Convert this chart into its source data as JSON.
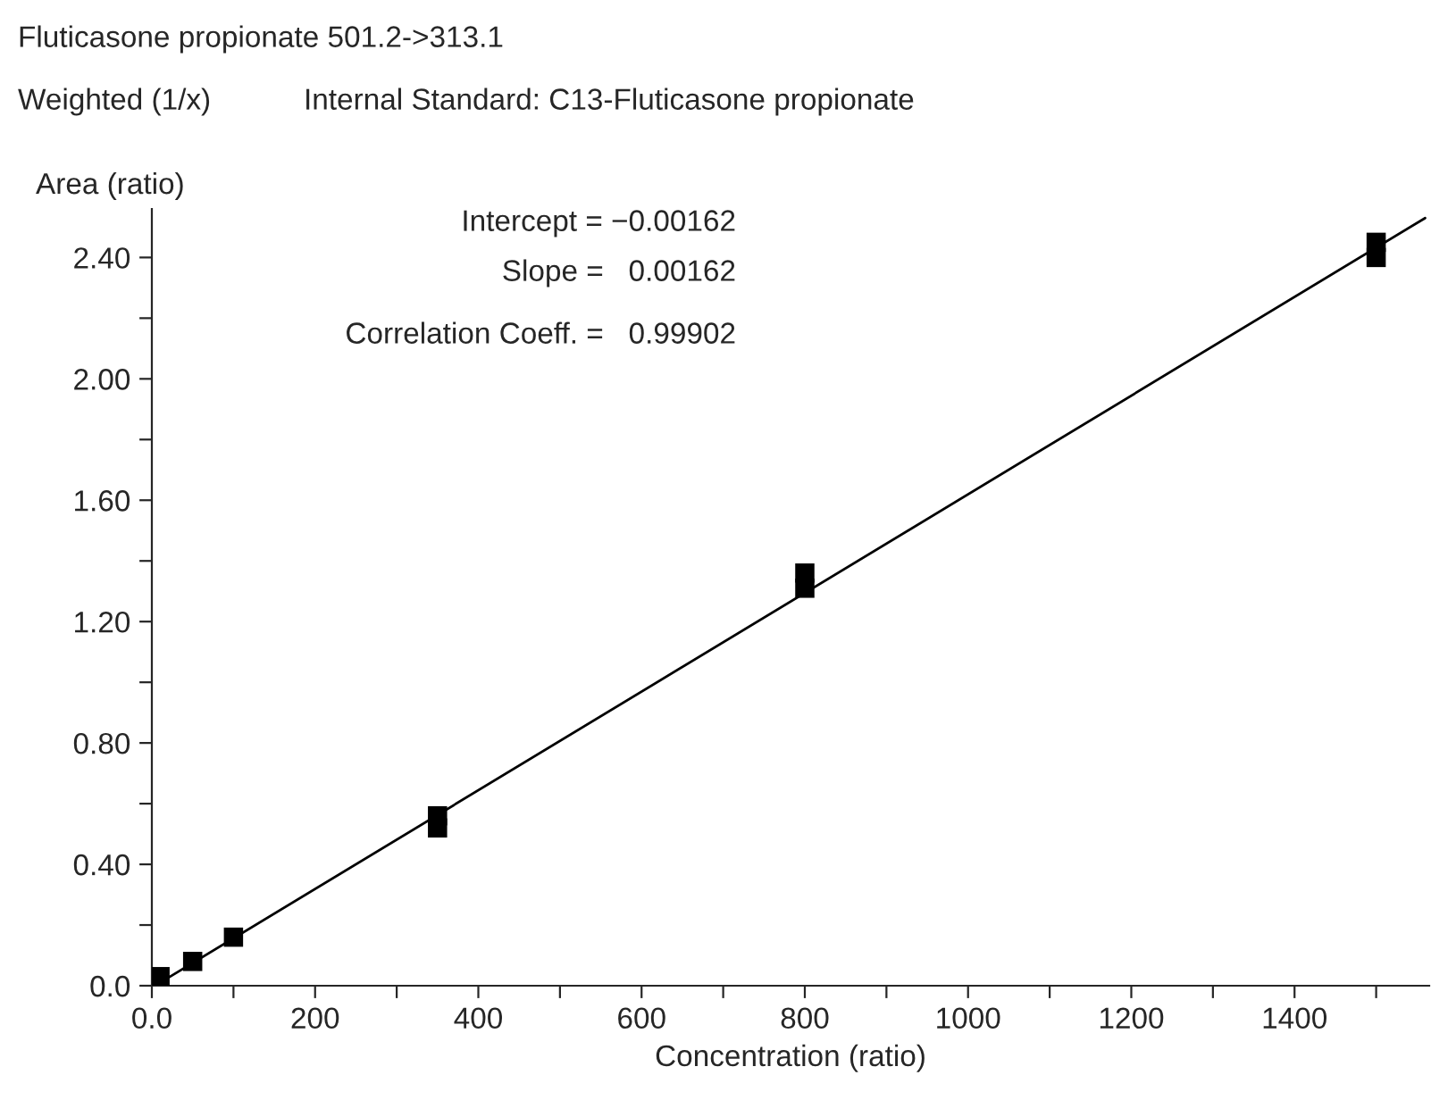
{
  "chart_data": {
    "type": "scatter",
    "title": "Fluticasone propionate 501.2->313.1",
    "subtitle": "Weighted (1/x)",
    "xlabel": "Concentration (ratio)",
    "ylabel": "Area (ratio)",
    "annotations": [
      "Internal Standard: C13-Fluticasone propionate",
      "Intercept = −0.00162",
      "Slope =   0.00162",
      "Correlation Coeff. =   0.99902"
    ],
    "legend": false,
    "grid": false,
    "series": [
      {
        "marker": "square",
        "color": "#000000",
        "x": [
          10,
          50,
          100,
          350,
          350,
          800,
          800,
          1500,
          1500
        ],
        "values": [
          0.03,
          0.08,
          0.16,
          0.52,
          0.56,
          1.31,
          1.36,
          2.4,
          2.45
        ]
      },
      {
        "type": "line",
        "color": "#000000",
        "x": [
          10,
          1560
        ],
        "values": [
          0.01,
          2.53
        ]
      }
    ],
    "xlim": [
      0,
      1565
    ],
    "ylim": [
      0,
      2.56
    ],
    "xticks": [
      {
        "value": 0,
        "label": "0.0"
      },
      {
        "value": 100,
        "label": null
      },
      200,
      {
        "value": 300,
        "label": null
      },
      400,
      {
        "value": 500,
        "label": null
      },
      600,
      {
        "value": 700,
        "label": null
      },
      800,
      {
        "value": 900,
        "label": null
      },
      1000,
      {
        "value": 1100,
        "label": null
      },
      1200,
      {
        "value": 1300,
        "label": null
      },
      1400,
      {
        "value": 1500,
        "label": null
      }
    ],
    "yticks": [
      {
        "value": 0,
        "label": "0.0"
      },
      {
        "value": 0.2,
        "label": null
      },
      {
        "value": 0.4,
        "label": "0.40"
      },
      {
        "value": 0.6,
        "label": null
      },
      {
        "value": 0.8,
        "label": "0.80"
      },
      {
        "value": 1.0,
        "label": null
      },
      {
        "value": 1.2,
        "label": "1.20"
      },
      {
        "value": 1.4,
        "label": null
      },
      {
        "value": 1.6,
        "label": "1.60"
      },
      {
        "value": 1.8,
        "label": null
      },
      {
        "value": 2.0,
        "label": "2.00"
      },
      {
        "value": 2.2,
        "label": null
      },
      {
        "value": 2.4,
        "label": "2.40"
      }
    ]
  }
}
